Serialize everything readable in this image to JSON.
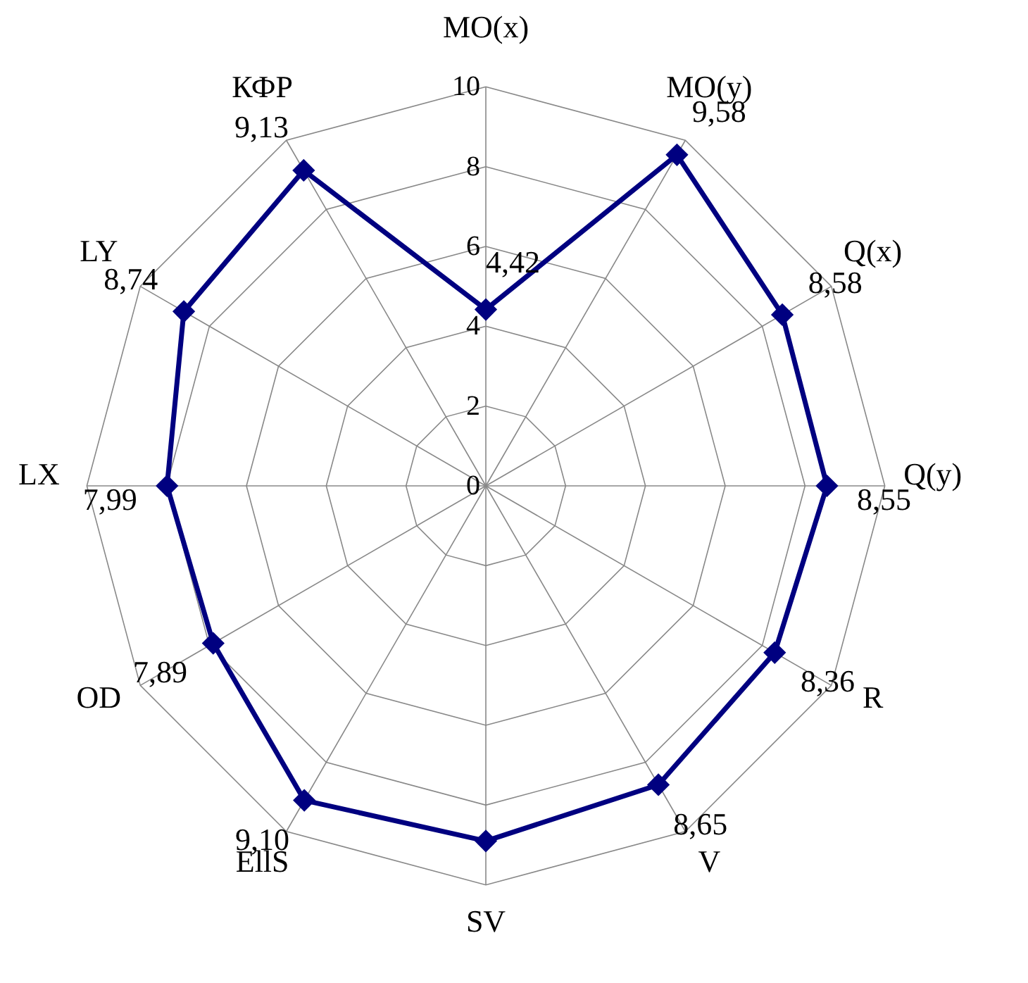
{
  "chart_data": {
    "type": "radar",
    "categories": [
      "MO(x)",
      "MO(y)",
      "Q(x)",
      "Q(y)",
      "R",
      "V",
      "SV",
      "EllS",
      "OD",
      "LX",
      "LY",
      "КФР"
    ],
    "series": [
      {
        "color": "#000080",
        "values": [
          4.42,
          9.58,
          8.58,
          8.55,
          8.36,
          8.65,
          8.9,
          9.1,
          7.89,
          7.99,
          8.74,
          9.13
        ],
        "value_labels": [
          "4,42",
          "9,58",
          "8,58",
          "8,55",
          "8,36",
          "8,65",
          null,
          "9,10",
          "7,89",
          "7,99",
          "8,74",
          "9,13"
        ]
      }
    ],
    "ylim": [
      0,
      10
    ],
    "yticks": [
      0,
      2,
      4,
      6,
      8,
      10
    ],
    "grid": true,
    "marker": "diamond",
    "line_style": "solid"
  }
}
